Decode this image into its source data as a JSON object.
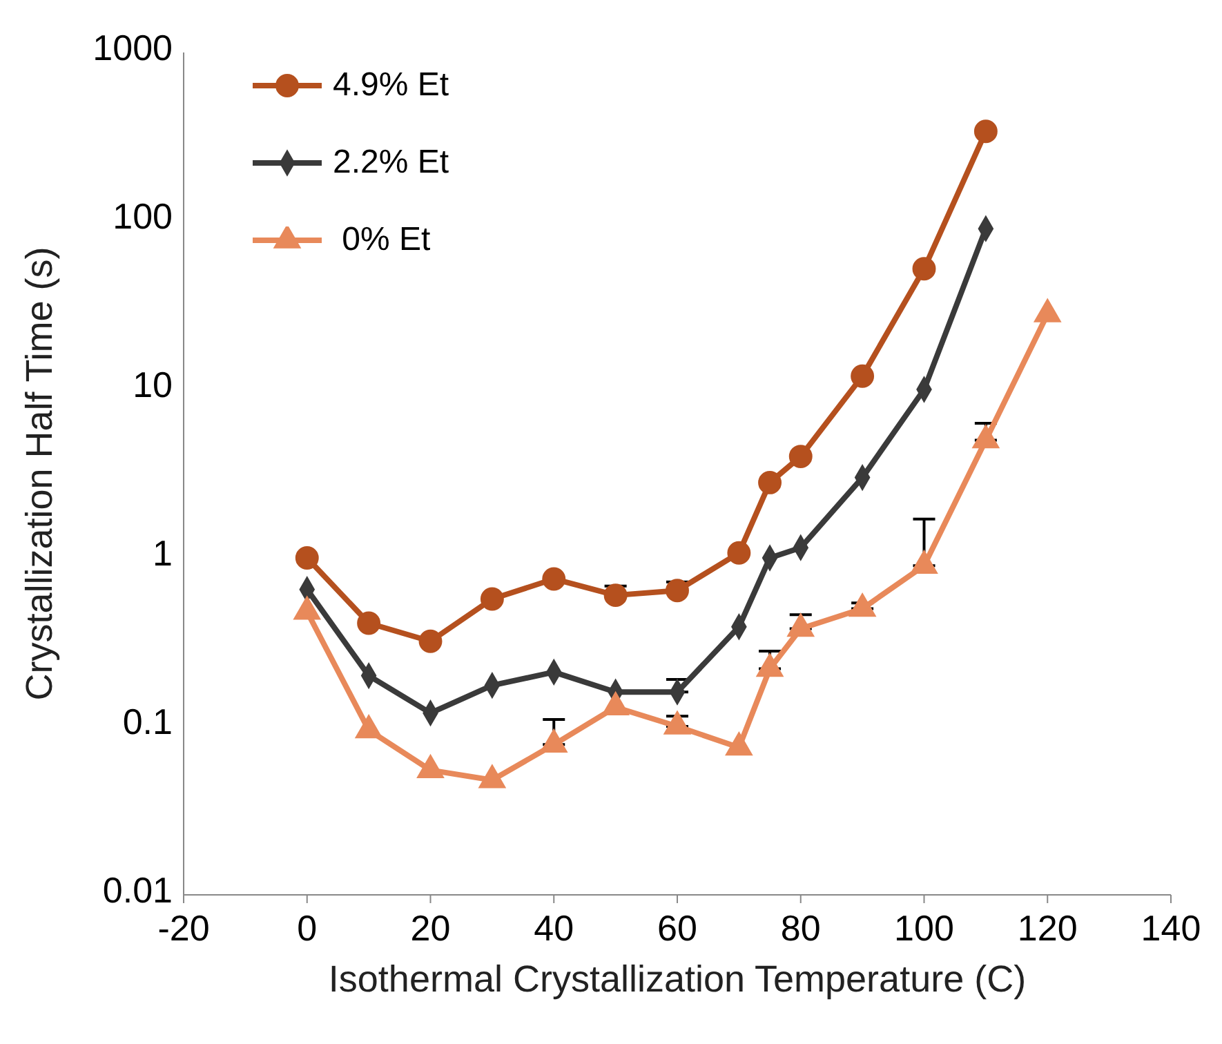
{
  "chart_data": {
    "type": "line",
    "xlabel": "Isothermal Crystallization Temperature (C)",
    "ylabel": "Crystallization Half Time (s)",
    "log": "y",
    "xlim": [
      -20,
      140
    ],
    "xticks": [
      -20,
      0,
      20,
      40,
      60,
      80,
      100,
      120,
      140
    ],
    "ylim": [
      0.01,
      1000
    ],
    "yticks": [
      0.01,
      0.1,
      1,
      10,
      100,
      1000
    ],
    "grid": false,
    "legend": "top left",
    "line_style": "solid",
    "series": [
      {
        "name": "4.9% Et",
        "color": "#b5501e",
        "marker": "circle",
        "x": [
          0,
          10,
          20,
          30,
          40,
          50,
          60,
          70,
          75,
          80,
          90,
          100,
          110
        ],
        "values": [
          1.0,
          0.41,
          0.32,
          0.57,
          0.75,
          0.6,
          0.64,
          1.07,
          2.8,
          4.0,
          12,
          52,
          340
        ],
        "errors": [
          null,
          null,
          null,
          null,
          null,
          [
            0.6,
            0.68
          ],
          [
            0.64,
            0.72
          ],
          null,
          null,
          null,
          null,
          null,
          null
        ]
      },
      {
        "name": "2.2% Et",
        "color": "#3a3a3a",
        "marker": "diamond",
        "x": [
          0,
          10,
          20,
          30,
          40,
          50,
          60,
          70,
          75,
          80,
          90,
          100,
          110
        ],
        "values": [
          0.65,
          0.2,
          0.12,
          0.175,
          0.21,
          0.16,
          0.16,
          0.39,
          1.0,
          1.15,
          3.0,
          10,
          90
        ],
        "errors": [
          null,
          null,
          null,
          null,
          null,
          null,
          [
            0.16,
            0.19
          ],
          null,
          null,
          null,
          null,
          null,
          null
        ]
      },
      {
        "name": " 0% Et",
        "color": "#e8895a",
        "marker": "triangle",
        "x": [
          0,
          10,
          20,
          30,
          40,
          50,
          60,
          70,
          75,
          80,
          90,
          100,
          110,
          120
        ],
        "values": [
          0.48,
          0.095,
          0.055,
          0.048,
          0.078,
          0.13,
          0.1,
          0.075,
          0.22,
          0.38,
          0.5,
          0.9,
          5,
          28
        ],
        "errors": [
          null,
          null,
          null,
          null,
          [
            0.078,
            0.11
          ],
          null,
          [
            0.1,
            0.115
          ],
          null,
          [
            0.22,
            0.28
          ],
          [
            0.38,
            0.46
          ],
          [
            0.5,
            0.54
          ],
          [
            0.9,
            1.7
          ],
          [
            5,
            6.3
          ],
          null
        ]
      }
    ]
  }
}
